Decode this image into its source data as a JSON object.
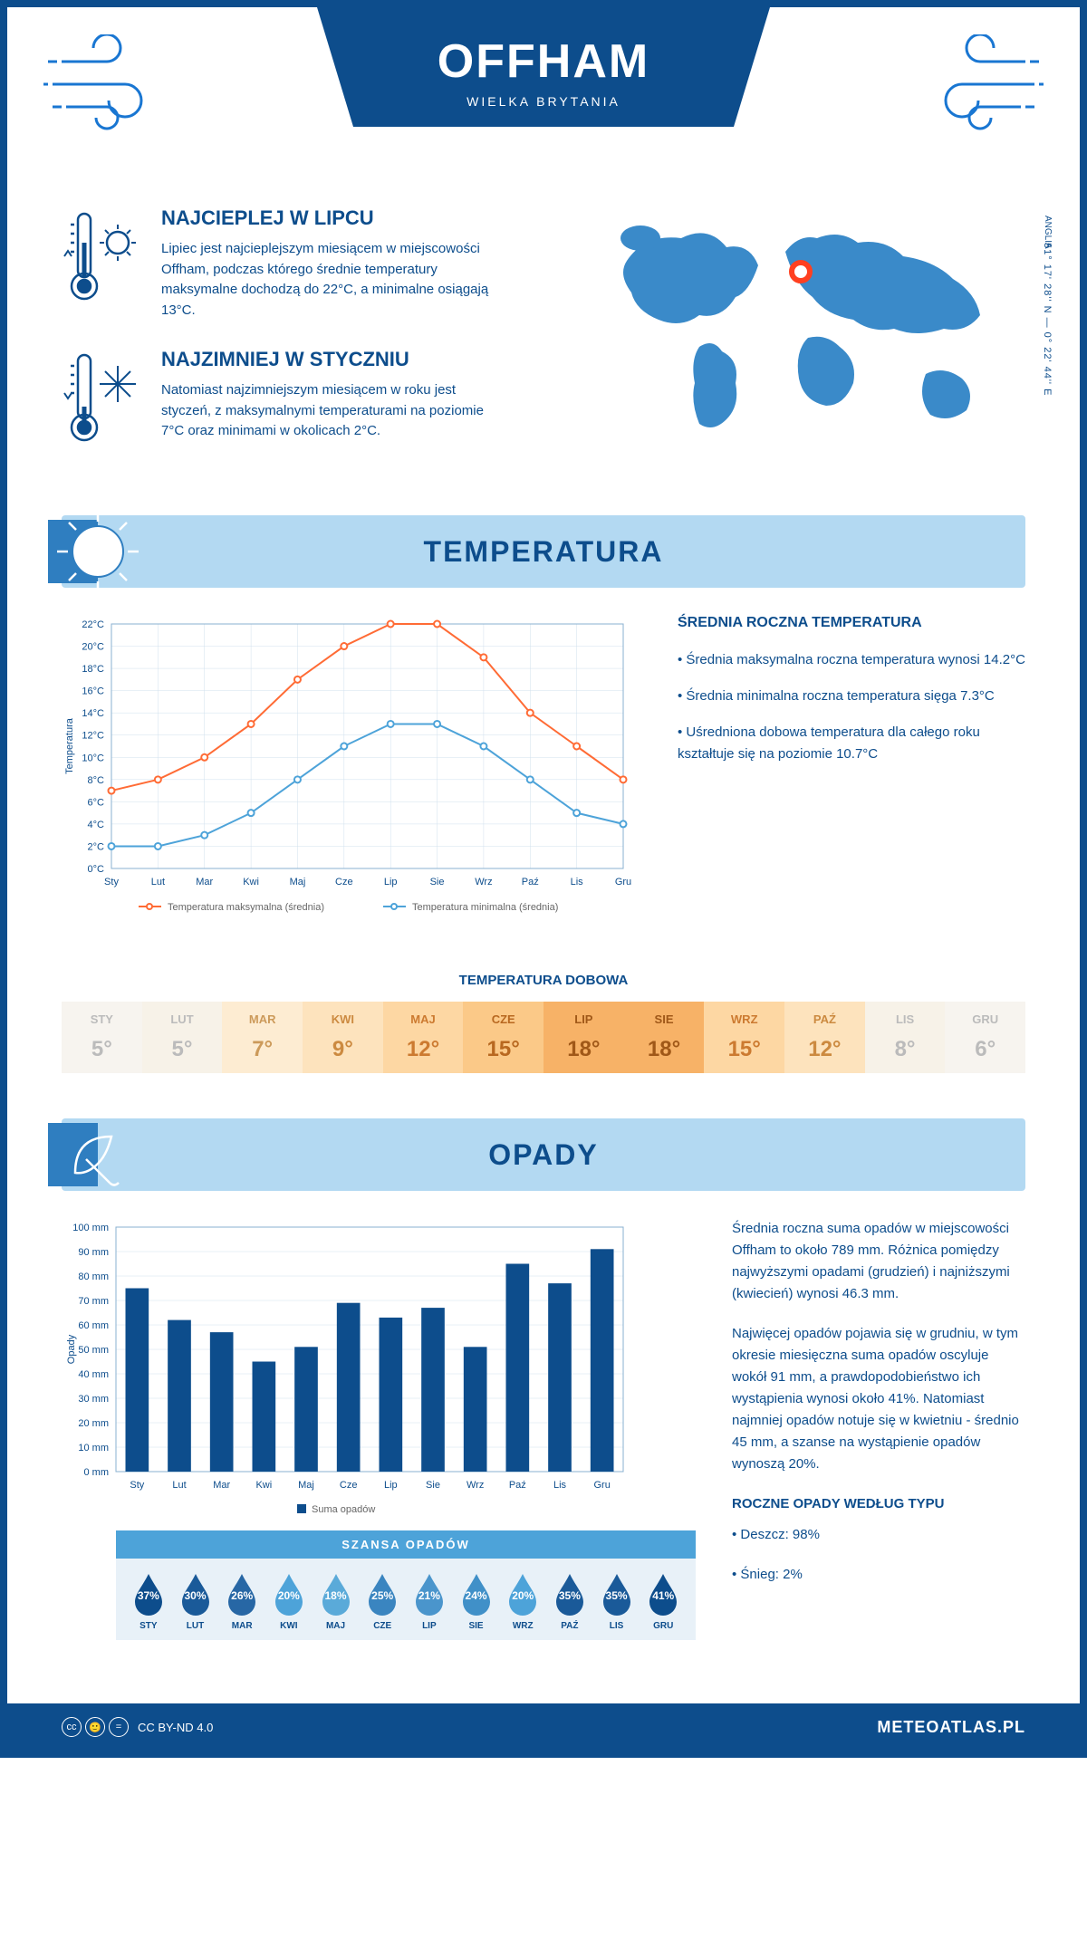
{
  "header": {
    "title": "OFFHAM",
    "subtitle": "WIELKA BRYTANIA"
  },
  "coords": "51° 17' 28'' N — 0° 22' 44'' E",
  "region": "ANGLIA",
  "summary": {
    "hot": {
      "title": "NAJCIEPLEJ W LIPCU",
      "text": "Lipiec jest najcieplejszym miesiącem w miejscowości Offham, podczas którego średnie temperatury maksymalne dochodzą do 22°C, a minimalne osiągają 13°C."
    },
    "cold": {
      "title": "NAJZIMNIEJ W STYCZNIU",
      "text": "Natomiast najzimniejszym miesiącem w roku jest styczeń, z maksymalnymi temperaturami na poziomie 7°C oraz minimami w okolicach 2°C."
    }
  },
  "sections": {
    "temp": "TEMPERATURA",
    "precip": "OPADY"
  },
  "temp_chart": {
    "type": "line",
    "months": [
      "Sty",
      "Lut",
      "Mar",
      "Kwi",
      "Maj",
      "Cze",
      "Lip",
      "Sie",
      "Wrz",
      "Paź",
      "Lis",
      "Gru"
    ],
    "ylabel": "Temperatura",
    "ylim": [
      0,
      22
    ],
    "ytick_step": 2,
    "max_series": {
      "label": "Temperatura maksymalna (średnia)",
      "color": "#ff6b35",
      "values": [
        7,
        8,
        10,
        13,
        17,
        20,
        22,
        22,
        19,
        14,
        11,
        8
      ]
    },
    "min_series": {
      "label": "Temperatura minimalna (średnia)",
      "color": "#4da3d9",
      "values": [
        2,
        2,
        3,
        5,
        8,
        11,
        13,
        13,
        11,
        8,
        5,
        4
      ]
    },
    "grid_color": "#d0e0ee",
    "background_color": "#ffffff"
  },
  "temp_info": {
    "title": "ŚREDNIA ROCZNA TEMPERATURA",
    "bullets": [
      "• Średnia maksymalna roczna temperatura wynosi 14.2°C",
      "• Średnia minimalna roczna temperatura sięga 7.3°C",
      "• Uśredniona dobowa temperatura dla całego roku kształtuje się na poziomie 10.7°C"
    ]
  },
  "daily": {
    "title": "TEMPERATURA DOBOWA",
    "months": [
      "STY",
      "LUT",
      "MAR",
      "KWI",
      "MAJ",
      "CZE",
      "LIP",
      "SIE",
      "WRZ",
      "PAŹ",
      "LIS",
      "GRU"
    ],
    "values": [
      5,
      5,
      7,
      9,
      12,
      15,
      18,
      18,
      15,
      12,
      8,
      6
    ],
    "bg_colors": [
      "#f7f4ef",
      "#f7f2e8",
      "#fdecd2",
      "#fde3bd",
      "#fdd7a3",
      "#fbc988",
      "#f7b267",
      "#f7b267",
      "#fdd7a3",
      "#fde3bd",
      "#f7f2e8",
      "#f7f4ef"
    ],
    "text_colors": [
      "#bbb",
      "#bbb",
      "#cc9a5a",
      "#cc8a40",
      "#cc7a30",
      "#b86820",
      "#a05818",
      "#a05818",
      "#cc7a30",
      "#cc8a40",
      "#bbb",
      "#bbb"
    ]
  },
  "precip_chart": {
    "type": "bar",
    "months": [
      "Sty",
      "Lut",
      "Mar",
      "Kwi",
      "Maj",
      "Cze",
      "Lip",
      "Sie",
      "Wrz",
      "Paź",
      "Lis",
      "Gru"
    ],
    "values": [
      75,
      62,
      57,
      45,
      51,
      69,
      63,
      67,
      51,
      85,
      77,
      91
    ],
    "ylabel": "Opady",
    "ylim": [
      0,
      100
    ],
    "ytick_step": 10,
    "bar_color": "#0d4d8c",
    "grid_color": "#d0e0ee",
    "legend": "Suma opadów"
  },
  "precip_info": {
    "p1": "Średnia roczna suma opadów w miejscowości Offham to około 789 mm. Różnica pomiędzy najwyższymi opadami (grudzień) i najniższymi (kwiecień) wynosi 46.3 mm.",
    "p2": "Najwięcej opadów pojawia się w grudniu, w tym okresie miesięczna suma opadów oscyluje wokół 91 mm, a prawdopodobieństwo ich wystąpienia wynosi około 41%. Natomiast najmniej opadów notuje się w kwietniu - średnio 45 mm, a szanse na wystąpienie opadów wynoszą 20%.",
    "type_title": "ROCZNE OPADY WEDŁUG TYPU",
    "type_bullets": [
      "• Deszcz: 98%",
      "• Śnieg: 2%"
    ]
  },
  "chance": {
    "title": "SZANSA OPADÓW",
    "months": [
      "STY",
      "LUT",
      "MAR",
      "KWI",
      "MAJ",
      "CZE",
      "LIP",
      "SIE",
      "WRZ",
      "PAŹ",
      "LIS",
      "GRU"
    ],
    "values": [
      37,
      30,
      26,
      20,
      18,
      25,
      21,
      24,
      20,
      35,
      35,
      41
    ],
    "colors": [
      "#0d4d8c",
      "#1a5a99",
      "#2767a5",
      "#4da3d9",
      "#5aaad9",
      "#3a85c0",
      "#4a95cc",
      "#4090c8",
      "#4da3d9",
      "#1a5a99",
      "#1a5a99",
      "#0d4d8c"
    ]
  },
  "footer": {
    "license": "CC BY-ND 4.0",
    "site": "METEOATLAS.PL"
  }
}
